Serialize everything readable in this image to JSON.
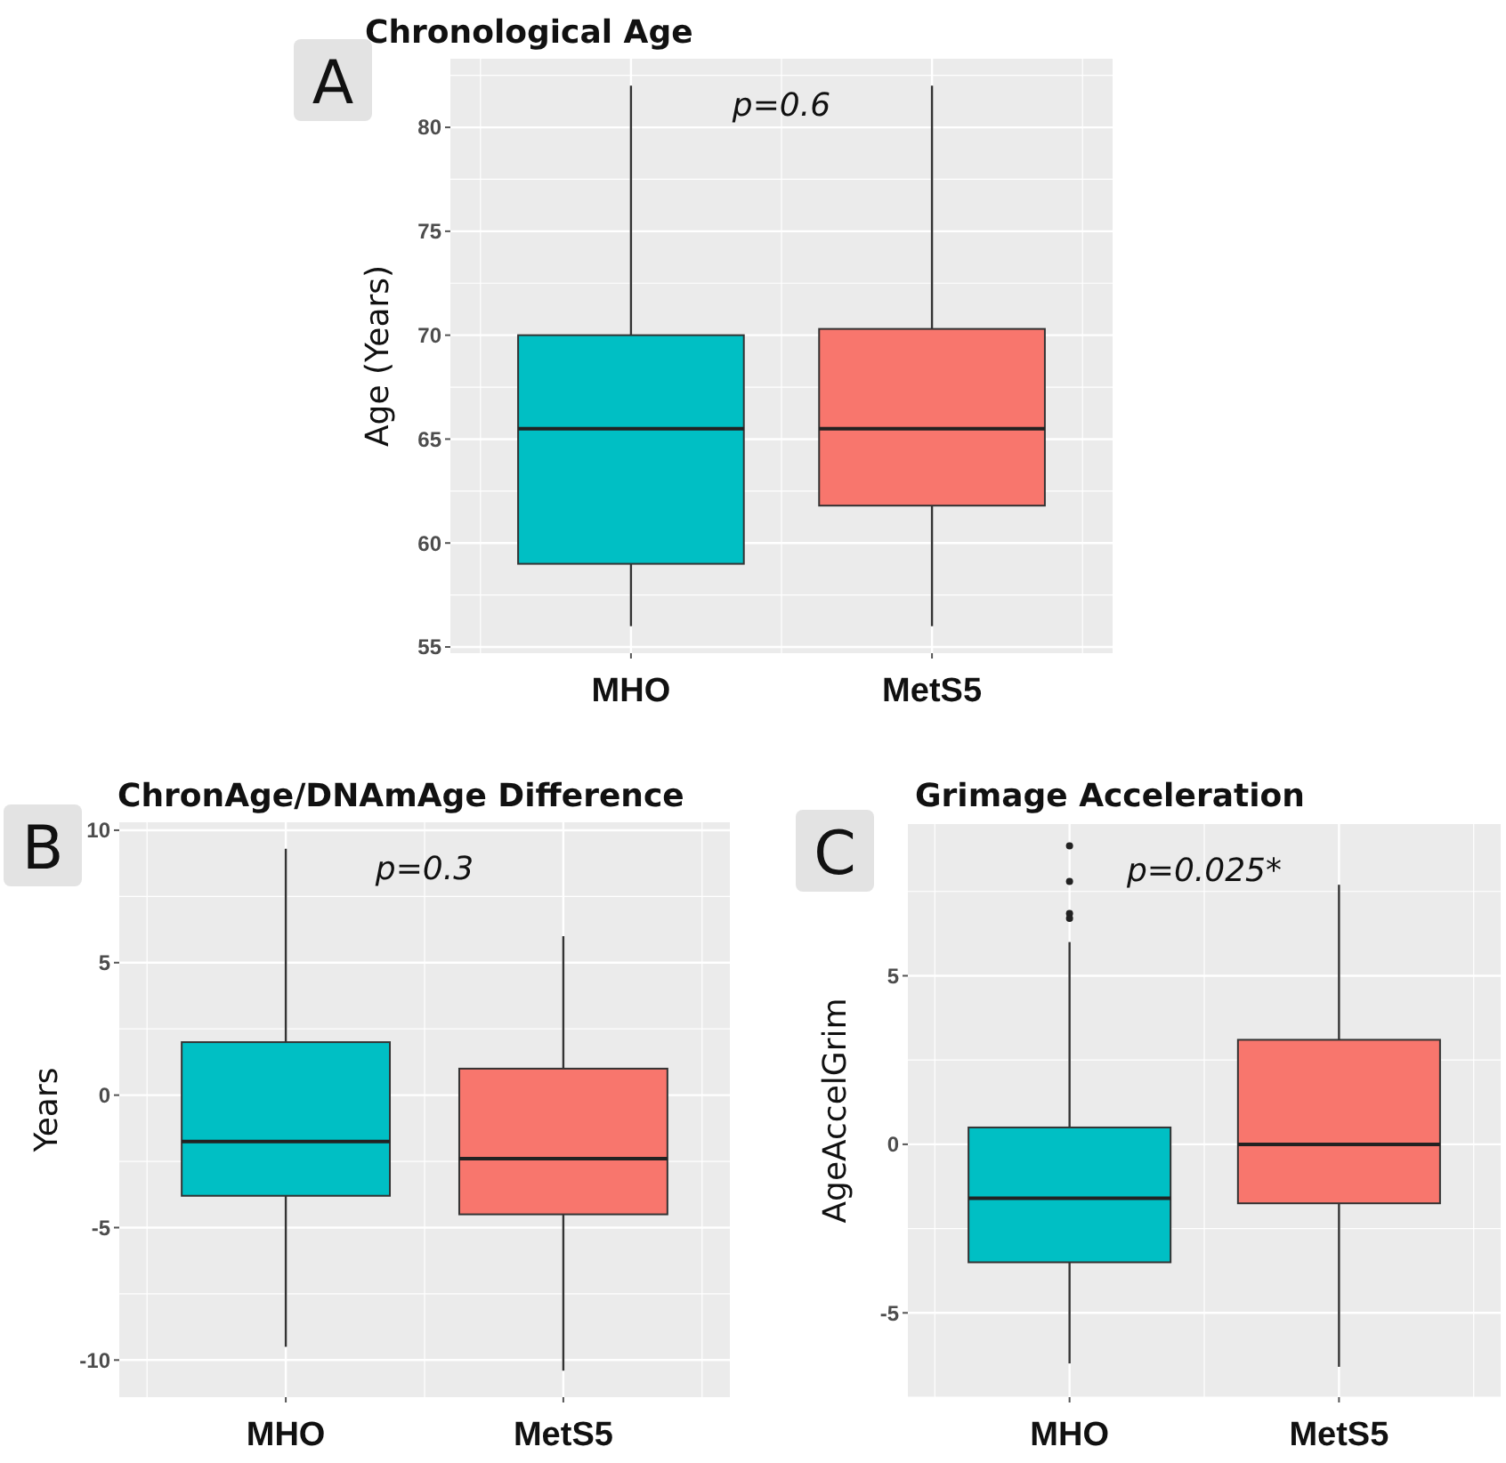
{
  "chart_data": [
    {
      "type": "box",
      "title": "Chronological Age",
      "ylabel": "Age (Years)",
      "annotations": [
        "A",
        "p=0.6"
      ],
      "categories": [
        "MHO",
        "MetS5"
      ],
      "colors": [
        "#00bfc4",
        "#f8766d"
      ],
      "grid": true,
      "ylim": [
        54.7,
        83.3
      ],
      "yticks": [
        55,
        60,
        65,
        70,
        75,
        80
      ],
      "boxes": [
        {
          "low": 56,
          "q1": 59,
          "median": 65.5,
          "q3": 70,
          "high": 82
        },
        {
          "low": 56,
          "q1": 61.8,
          "median": 65.5,
          "q3": 70.3,
          "high": 82
        }
      ]
    },
    {
      "type": "box",
      "title": "ChronAge/DNAmAge Difference",
      "ylabel": "Years",
      "annotations": [
        "B",
        "p=0.3"
      ],
      "categories": [
        "MHO",
        "MetS5"
      ],
      "colors": [
        "#00bfc4",
        "#f8766d"
      ],
      "grid": true,
      "ylim": [
        -11.4,
        10.3
      ],
      "yticks": [
        -10,
        -5,
        0,
        5,
        10
      ],
      "boxes": [
        {
          "low": -9.5,
          "q1": -3.8,
          "median": -1.75,
          "q3": 2,
          "high": 9.3
        },
        {
          "low": -10.4,
          "q1": -4.5,
          "median": -2.4,
          "q3": 1,
          "high": 6
        }
      ]
    },
    {
      "type": "box",
      "title": "Grimage Acceleration",
      "ylabel": "AgeAccelGrim",
      "annotations": [
        "C",
        "p=0.025*"
      ],
      "categories": [
        "MHO",
        "MetS5"
      ],
      "colors": [
        "#00bfc4",
        "#f8766d"
      ],
      "grid": true,
      "ylim": [
        -7.5,
        9.5
      ],
      "yticks": [
        -5,
        0,
        5
      ],
      "boxes": [
        {
          "low": -6.5,
          "q1": -3.5,
          "median": -1.6,
          "q3": 0.5,
          "high": 6,
          "outliers": [
            8.85,
            7.8,
            6.85,
            6.7
          ]
        },
        {
          "low": -6.6,
          "q1": -1.75,
          "median": 0,
          "q3": 3.1,
          "high": 7.7
        }
      ]
    }
  ]
}
